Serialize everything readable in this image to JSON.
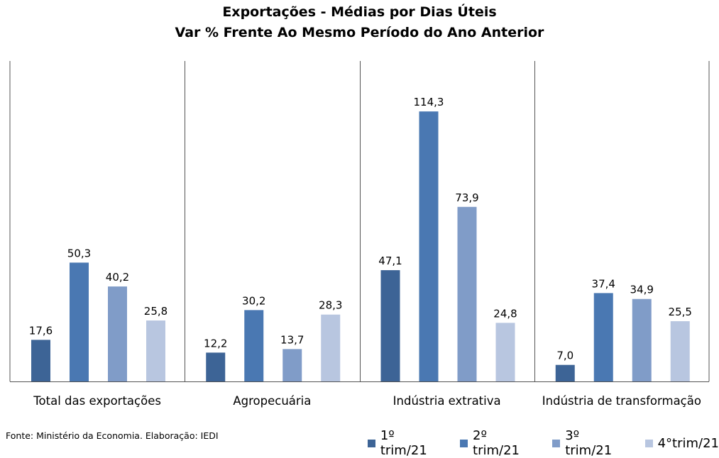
{
  "chart_data": {
    "type": "bar",
    "title": "Exportações - Médias por Dias Úteis",
    "subtitle": "Var % Frente Ao Mesmo Período do Ano Anterior",
    "categories": [
      "Total das exportações",
      "Agropecuária",
      "Indústria extrativa",
      "Indústria de transformação"
    ],
    "series": [
      {
        "name": "1º trim/21",
        "color": "#3d6496",
        "values": [
          17.6,
          12.2,
          47.1,
          7.0
        ],
        "labels": [
          "17,6",
          "12,2",
          "47,1",
          "7,0"
        ]
      },
      {
        "name": "2º trim/21",
        "color": "#4a78b2",
        "values": [
          50.3,
          30.2,
          114.3,
          37.4
        ],
        "labels": [
          "50,3",
          "30,2",
          "114,3",
          "37,4"
        ]
      },
      {
        "name": "3º trim/21",
        "color": "#809cc8",
        "values": [
          40.2,
          13.7,
          73.9,
          34.9
        ],
        "labels": [
          "40,2",
          "13,7",
          "73,9",
          "34,9"
        ]
      },
      {
        "name": "4°trim/21",
        "color": "#b8c6e0",
        "values": [
          25.8,
          28.3,
          24.8,
          25.5
        ],
        "labels": [
          "25,8",
          "28,3",
          "24,8",
          "25,5"
        ]
      }
    ],
    "ylim": [
      0,
      125
    ],
    "grid": false,
    "legend_position": "bottom-right"
  },
  "footer": {
    "source": "Fonte: Ministério da Economia. Elaboração: IEDI"
  }
}
